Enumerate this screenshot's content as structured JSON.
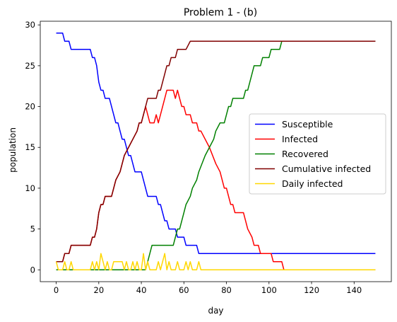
{
  "chart_data": {
    "type": "line",
    "title": "Problem 1 - (b)",
    "xlabel": "day",
    "ylabel": "population",
    "xlim": [
      -7.5,
      157.5
    ],
    "ylim": [
      -1.45,
      30.45
    ],
    "xticks": [
      0,
      20,
      40,
      60,
      80,
      100,
      120,
      140
    ],
    "yticks": [
      0,
      5,
      10,
      15,
      20,
      25,
      30
    ],
    "grid": false,
    "legend_position": "center right",
    "series": [
      {
        "name": "Susceptible",
        "color": "#0000ff",
        "points": [
          [
            0,
            29
          ],
          [
            3,
            29
          ],
          [
            4,
            28
          ],
          [
            6,
            28
          ],
          [
            7,
            27
          ],
          [
            16,
            27
          ],
          [
            17,
            26
          ],
          [
            18,
            26
          ],
          [
            19,
            25
          ],
          [
            20,
            23
          ],
          [
            21,
            22
          ],
          [
            22,
            22
          ],
          [
            23,
            21
          ],
          [
            25,
            21
          ],
          [
            26,
            20
          ],
          [
            27,
            19
          ],
          [
            28,
            18
          ],
          [
            29,
            18
          ],
          [
            30,
            17
          ],
          [
            31,
            16
          ],
          [
            32,
            16
          ],
          [
            33,
            15
          ],
          [
            34,
            14
          ],
          [
            35,
            14
          ],
          [
            36,
            13
          ],
          [
            37,
            12
          ],
          [
            40,
            12
          ],
          [
            41,
            11
          ],
          [
            42,
            10
          ],
          [
            43,
            9
          ],
          [
            47,
            9
          ],
          [
            48,
            8
          ],
          [
            49,
            8
          ],
          [
            50,
            7
          ],
          [
            51,
            6
          ],
          [
            52,
            6
          ],
          [
            53,
            5
          ],
          [
            56,
            5
          ],
          [
            57,
            4
          ],
          [
            60,
            4
          ],
          [
            61,
            3
          ],
          [
            66,
            3
          ],
          [
            67,
            2
          ],
          [
            150,
            2
          ]
        ]
      },
      {
        "name": "Infected",
        "color": "#ff0000",
        "points": [
          [
            0,
            1
          ],
          [
            3,
            1
          ],
          [
            4,
            2
          ],
          [
            6,
            2
          ],
          [
            7,
            3
          ],
          [
            16,
            3
          ],
          [
            17,
            4
          ],
          [
            18,
            4
          ],
          [
            19,
            5
          ],
          [
            20,
            7
          ],
          [
            21,
            8
          ],
          [
            22,
            8
          ],
          [
            23,
            9
          ],
          [
            26,
            9
          ],
          [
            27,
            10
          ],
          [
            28,
            11
          ],
          [
            30,
            12
          ],
          [
            31,
            13
          ],
          [
            32,
            14
          ],
          [
            34,
            15
          ],
          [
            36,
            16
          ],
          [
            38,
            17
          ],
          [
            39,
            18
          ],
          [
            40,
            18
          ],
          [
            41,
            19
          ],
          [
            42,
            20
          ],
          [
            43,
            19
          ],
          [
            44,
            18
          ],
          [
            46,
            18
          ],
          [
            47,
            19
          ],
          [
            48,
            18
          ],
          [
            49,
            19
          ],
          [
            50,
            20
          ],
          [
            51,
            21
          ],
          [
            52,
            22
          ],
          [
            55,
            22
          ],
          [
            56,
            21
          ],
          [
            57,
            22
          ],
          [
            58,
            21
          ],
          [
            59,
            20
          ],
          [
            60,
            20
          ],
          [
            61,
            19
          ],
          [
            63,
            19
          ],
          [
            64,
            18
          ],
          [
            66,
            18
          ],
          [
            67,
            17
          ],
          [
            68,
            17
          ],
          [
            72,
            15
          ],
          [
            75,
            13
          ],
          [
            77,
            12
          ],
          [
            78,
            11
          ],
          [
            79,
            10
          ],
          [
            80,
            10
          ],
          [
            81,
            9
          ],
          [
            82,
            8
          ],
          [
            83,
            8
          ],
          [
            84,
            7
          ],
          [
            88,
            7
          ],
          [
            89,
            6
          ],
          [
            90,
            5
          ],
          [
            92,
            4
          ],
          [
            93,
            3
          ],
          [
            95,
            3
          ],
          [
            96,
            2
          ],
          [
            101,
            2
          ],
          [
            102,
            1
          ],
          [
            106,
            1
          ],
          [
            107,
            0
          ],
          [
            150,
            0
          ]
        ]
      },
      {
        "name": "Recovered",
        "color": "#008000",
        "points": [
          [
            0,
            0
          ],
          [
            42,
            0
          ],
          [
            43,
            1
          ],
          [
            44,
            2
          ],
          [
            45,
            3
          ],
          [
            55,
            3
          ],
          [
            56,
            4
          ],
          [
            57,
            5
          ],
          [
            58,
            5
          ],
          [
            59,
            6
          ],
          [
            60,
            7
          ],
          [
            61,
            8
          ],
          [
            63,
            9
          ],
          [
            64,
            10
          ],
          [
            66,
            11
          ],
          [
            67,
            12
          ],
          [
            70,
            14
          ],
          [
            72,
            15
          ],
          [
            74,
            16
          ],
          [
            75,
            17
          ],
          [
            77,
            18
          ],
          [
            79,
            18
          ],
          [
            80,
            19
          ],
          [
            81,
            20
          ],
          [
            82,
            20
          ],
          [
            83,
            21
          ],
          [
            88,
            21
          ],
          [
            89,
            22
          ],
          [
            90,
            22
          ],
          [
            91,
            23
          ],
          [
            92,
            24
          ],
          [
            93,
            25
          ],
          [
            96,
            25
          ],
          [
            97,
            26
          ],
          [
            100,
            26
          ],
          [
            101,
            27
          ],
          [
            105,
            27
          ],
          [
            106,
            28
          ],
          [
            150,
            28
          ]
        ]
      },
      {
        "name": "Cumulative infected",
        "color": "#800000",
        "points": [
          [
            0,
            1
          ],
          [
            3,
            1
          ],
          [
            4,
            2
          ],
          [
            6,
            2
          ],
          [
            7,
            3
          ],
          [
            16,
            3
          ],
          [
            17,
            4
          ],
          [
            18,
            4
          ],
          [
            19,
            5
          ],
          [
            20,
            7
          ],
          [
            21,
            8
          ],
          [
            22,
            8
          ],
          [
            23,
            9
          ],
          [
            26,
            9
          ],
          [
            27,
            10
          ],
          [
            28,
            11
          ],
          [
            30,
            12
          ],
          [
            31,
            13
          ],
          [
            32,
            14
          ],
          [
            34,
            15
          ],
          [
            36,
            16
          ],
          [
            38,
            17
          ],
          [
            39,
            18
          ],
          [
            40,
            18
          ],
          [
            41,
            19
          ],
          [
            42,
            20
          ],
          [
            43,
            21
          ],
          [
            47,
            21
          ],
          [
            48,
            22
          ],
          [
            49,
            22
          ],
          [
            50,
            23
          ],
          [
            51,
            24
          ],
          [
            52,
            25
          ],
          [
            53,
            25
          ],
          [
            54,
            26
          ],
          [
            56,
            26
          ],
          [
            57,
            27
          ],
          [
            60,
            27
          ],
          [
            61,
            27
          ],
          [
            63,
            28
          ],
          [
            65,
            28
          ],
          [
            66,
            28
          ],
          [
            67,
            28
          ],
          [
            150,
            28
          ]
        ]
      },
      {
        "name": "Daily infected",
        "color": "#ffd700",
        "points": [
          [
            0,
            1
          ],
          [
            1,
            0
          ],
          [
            3,
            0
          ],
          [
            4,
            1
          ],
          [
            5,
            0
          ],
          [
            6,
            0
          ],
          [
            7,
            1
          ],
          [
            8,
            0
          ],
          [
            16,
            0
          ],
          [
            17,
            1
          ],
          [
            18,
            0
          ],
          [
            19,
            1
          ],
          [
            20,
            0
          ],
          [
            21,
            2
          ],
          [
            22,
            1
          ],
          [
            23,
            0
          ],
          [
            24,
            1
          ],
          [
            25,
            0
          ],
          [
            26,
            0
          ],
          [
            27,
            1
          ],
          [
            29,
            1
          ],
          [
            30,
            1
          ],
          [
            31,
            1
          ],
          [
            32,
            0
          ],
          [
            33,
            1
          ],
          [
            34,
            0
          ],
          [
            35,
            0
          ],
          [
            36,
            1
          ],
          [
            37,
            0
          ],
          [
            38,
            1
          ],
          [
            39,
            0
          ],
          [
            40,
            0
          ],
          [
            41,
            2
          ],
          [
            42,
            0
          ],
          [
            43,
            1
          ],
          [
            44,
            0
          ],
          [
            47,
            0
          ],
          [
            48,
            1
          ],
          [
            49,
            0
          ],
          [
            50,
            1
          ],
          [
            51,
            2
          ],
          [
            52,
            0
          ],
          [
            53,
            1
          ],
          [
            54,
            0
          ],
          [
            56,
            0
          ],
          [
            57,
            1
          ],
          [
            58,
            0
          ],
          [
            60,
            0
          ],
          [
            61,
            1
          ],
          [
            62,
            0
          ],
          [
            63,
            1
          ],
          [
            64,
            0
          ],
          [
            66,
            0
          ],
          [
            67,
            1
          ],
          [
            68,
            0
          ],
          [
            150,
            0
          ]
        ]
      }
    ]
  }
}
